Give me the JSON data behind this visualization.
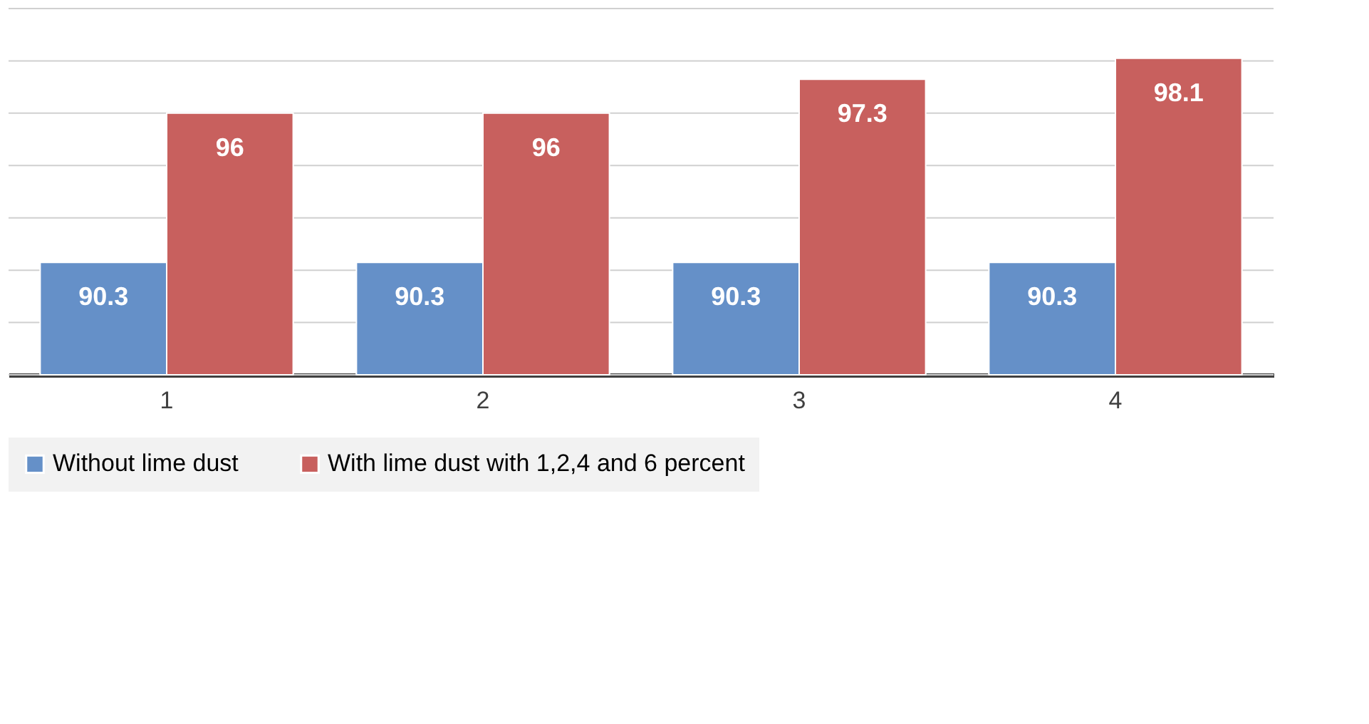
{
  "chart_data": {
    "type": "bar",
    "categories": [
      "1",
      "2",
      "3",
      "4"
    ],
    "series": [
      {
        "name": "Without lime dust",
        "color": "#6590c8",
        "values": [
          90.3,
          90.3,
          90.3,
          90.3
        ]
      },
      {
        "name": "With lime dust with 1,2,4 and 6 percent",
        "color": "#c8605e",
        "values": [
          96,
          96,
          97.3,
          98.1
        ]
      }
    ],
    "ylim": [
      86,
      100
    ],
    "yticks": [
      {
        "value": 86,
        "label": null
      },
      {
        "value": 88,
        "label": null
      },
      {
        "value": 90,
        "label": null
      },
      {
        "value": 92,
        "label": null
      },
      {
        "value": 94,
        "label": null
      },
      {
        "value": 96,
        "label": null
      },
      {
        "value": 98,
        "label": null
      },
      {
        "value": 100,
        "label": null
      }
    ],
    "tick_labels": "x",
    "grid": "y",
    "legend": "bottom",
    "data_labels": true
  }
}
